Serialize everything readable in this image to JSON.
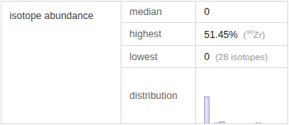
{
  "table": {
    "header": "isotope abundance",
    "rows": [
      {
        "label": "median",
        "value": "0"
      },
      {
        "label": "highest",
        "value": "51.45%",
        "note": [
          {
            "text": "("
          },
          {
            "text": "90",
            "sup": true
          },
          {
            "text": "Zr)"
          }
        ]
      },
      {
        "label": "lowest",
        "value": "0",
        "note": [
          {
            "text": "(28 isotopes)"
          }
        ]
      },
      {
        "label": "distribution"
      }
    ]
  },
  "chart_data": {
    "type": "histogram",
    "bins": [
      0,
      5,
      10,
      15,
      20,
      25,
      30,
      35,
      40,
      45,
      50,
      55
    ],
    "values": [
      29,
      0,
      1,
      2,
      0,
      0,
      0,
      0,
      0,
      0,
      1
    ],
    "xlim": [
      0,
      55
    ],
    "ylim": [
      0,
      29
    ],
    "color": "#dcdcf2",
    "grid": false,
    "tick_labels": false
  }
}
